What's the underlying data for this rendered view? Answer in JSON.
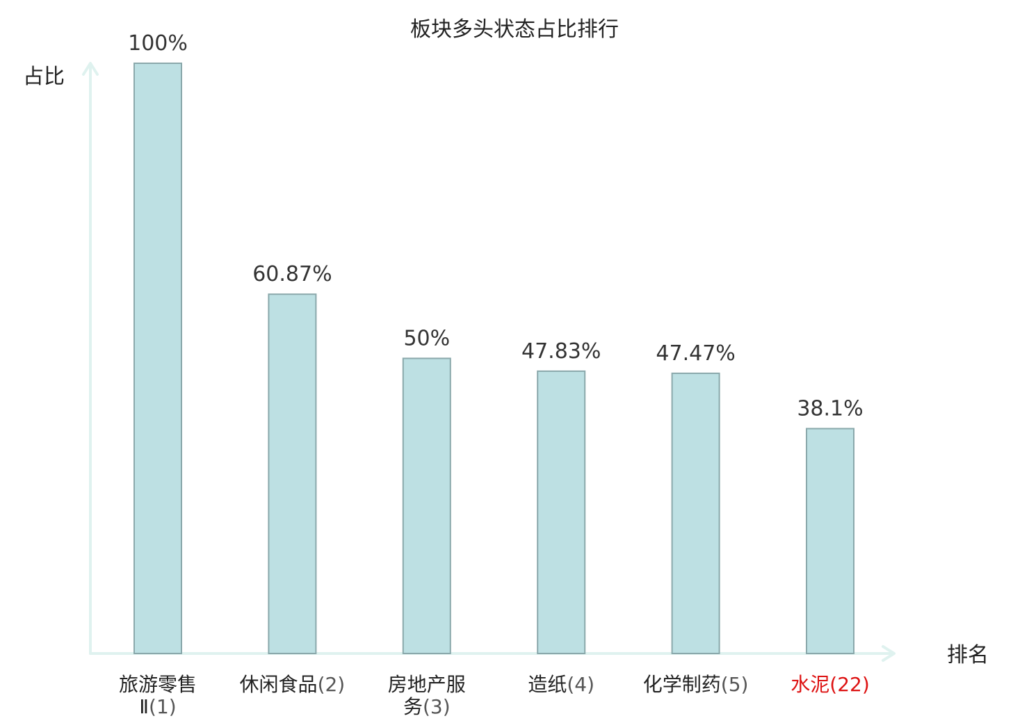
{
  "chart_data": {
    "type": "bar",
    "title": "板块多头状态占比排行",
    "ylabel": "占比",
    "xlabel": "排名",
    "ylim": [
      0,
      100
    ],
    "grid": false,
    "legend": "none",
    "categories": [
      {
        "lines": [
          {
            "name": "旅游零售",
            "rank": ""
          },
          {
            "name": "Ⅱ",
            "rank": "(1)"
          }
        ],
        "highlight": false
      },
      {
        "lines": [
          {
            "name": "休闲食品",
            "rank": "(2)"
          }
        ],
        "highlight": false
      },
      {
        "lines": [
          {
            "name": "房地产服",
            "rank": ""
          },
          {
            "name": "务",
            "rank": "(3)"
          }
        ],
        "highlight": false
      },
      {
        "lines": [
          {
            "name": "造纸",
            "rank": "(4)"
          }
        ],
        "highlight": false
      },
      {
        "lines": [
          {
            "name": "化学制药",
            "rank": "(5)"
          }
        ],
        "highlight": false
      },
      {
        "lines": [
          {
            "name": "水泥",
            "rank": "(22)"
          }
        ],
        "highlight": true
      }
    ],
    "values": [
      100,
      60.87,
      50,
      47.83,
      47.47,
      38.1
    ],
    "value_labels": [
      "100%",
      "60.87%",
      "50%",
      "47.83%",
      "47.47%",
      "38.1%"
    ],
    "colors": {
      "bar_fill": "#bde0e3",
      "bar_stroke": "#8aa8ab",
      "axis": "#dff2ef",
      "highlight_text": "#dd1111"
    }
  }
}
